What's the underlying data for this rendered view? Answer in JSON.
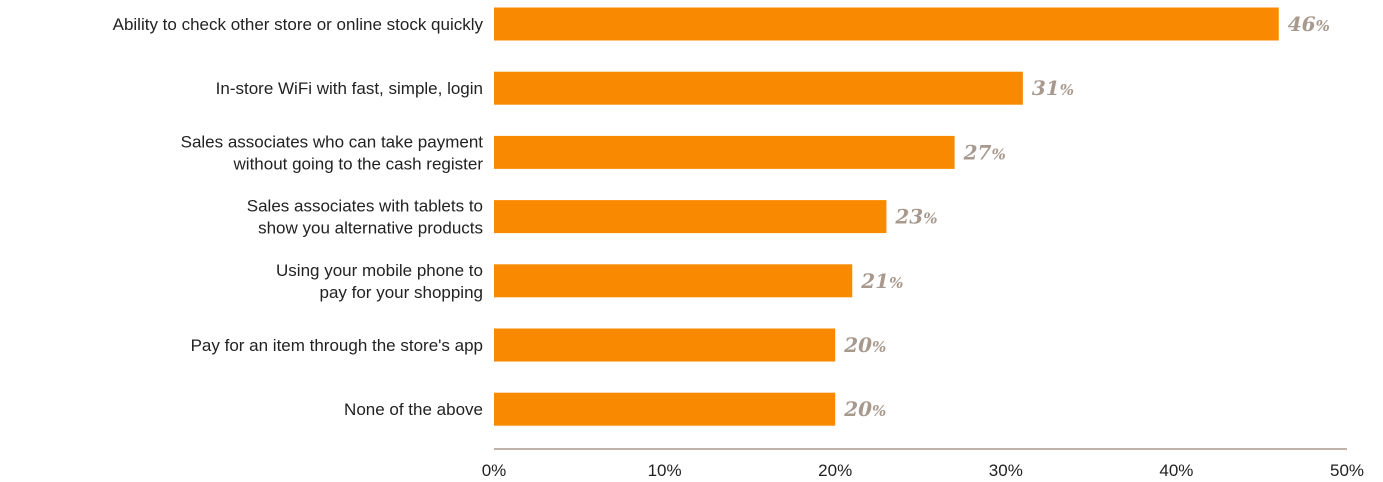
{
  "chart_data": {
    "type": "bar",
    "orientation": "horizontal",
    "categories": [
      [
        "Ability to check other store or online stock quickly"
      ],
      [
        "In-store WiFi with fast, simple, login"
      ],
      [
        "Sales associates who can take payment",
        "without going to the cash register"
      ],
      [
        "Sales associates with tablets to",
        "show you alternative products"
      ],
      [
        "Using your mobile phone to",
        "pay for your shopping"
      ],
      [
        "Pay for an item through the store's app"
      ],
      [
        "None of the above"
      ]
    ],
    "values": [
      46,
      31,
      27,
      23,
      21,
      20,
      20
    ],
    "value_labels": [
      "46%",
      "31%",
      "27%",
      "23%",
      "21%",
      "20%",
      "20%"
    ],
    "x_ticks": [
      "0%",
      "10%",
      "20%",
      "30%",
      "40%",
      "50%"
    ],
    "xlim": [
      0,
      50
    ],
    "grid": false,
    "colors": {
      "bar": "#f98a00",
      "value_label": "#a8998e",
      "axis": "#a8998e",
      "text": "#222222"
    }
  }
}
